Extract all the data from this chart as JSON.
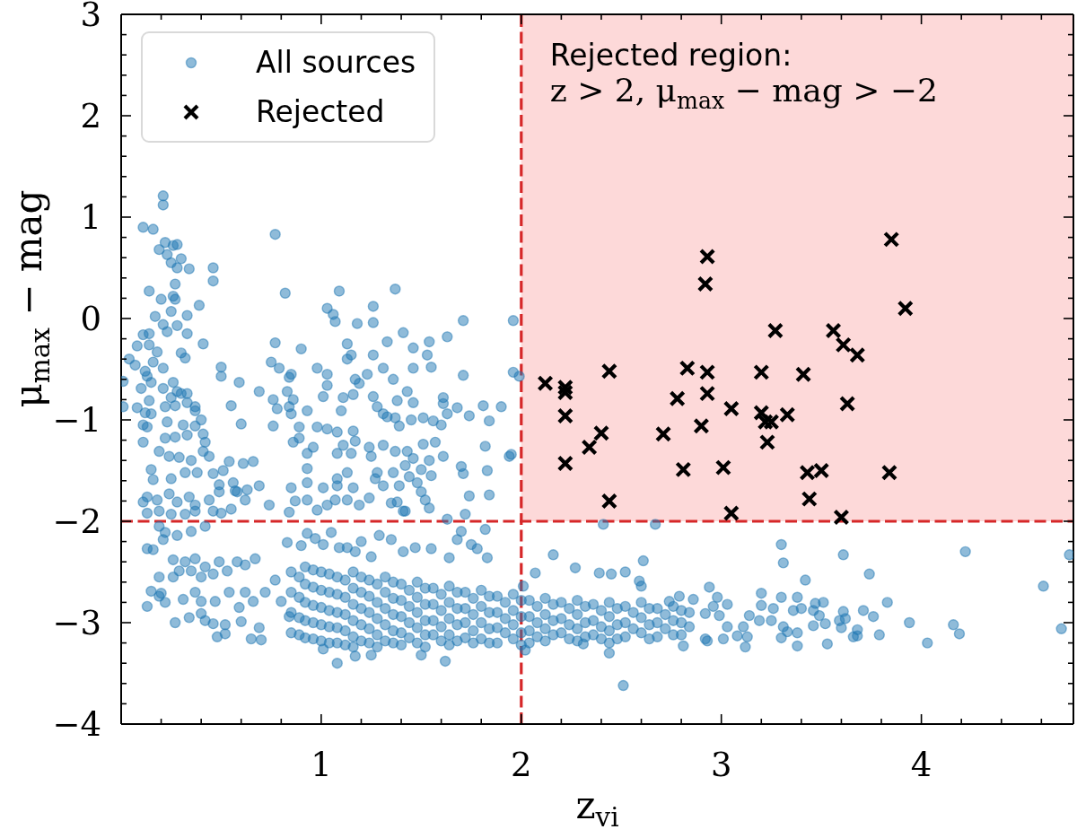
{
  "chart_data": {
    "type": "scatter",
    "xlabel": "z$_{vi}$",
    "ylabel": "μ$_{max}$ − mag",
    "xlim": [
      0,
      4.76
    ],
    "ylim": [
      -4,
      3
    ],
    "xticks": [
      {
        "value": 0.2,
        "label": null
      },
      {
        "value": 0.4,
        "label": null
      },
      {
        "value": 0.6,
        "label": null
      },
      {
        "value": 0.8,
        "label": null
      },
      1,
      {
        "value": 1.2,
        "label": null
      },
      {
        "value": 1.4,
        "label": null
      },
      {
        "value": 1.6,
        "label": null
      },
      {
        "value": 1.8,
        "label": null
      },
      2,
      {
        "value": 2.2,
        "label": null
      },
      {
        "value": 2.4,
        "label": null
      },
      {
        "value": 2.6,
        "label": null
      },
      {
        "value": 2.8,
        "label": null
      },
      3,
      {
        "value": 3.2,
        "label": null
      },
      {
        "value": 3.4,
        "label": null
      },
      {
        "value": 3.6,
        "label": null
      },
      {
        "value": 3.8,
        "label": null
      },
      4,
      {
        "value": 4.2,
        "label": null
      },
      {
        "value": 4.4,
        "label": null
      },
      {
        "value": 4.6,
        "label": null
      }
    ],
    "yticks": [
      {
        "value": -4,
        "label": "−4"
      },
      {
        "value": -3.8,
        "label": null
      },
      {
        "value": -3.6,
        "label": null
      },
      {
        "value": -3.4,
        "label": null
      },
      {
        "value": -3.2,
        "label": null
      },
      {
        "value": -3,
        "label": "−3"
      },
      {
        "value": -2.8,
        "label": null
      },
      {
        "value": -2.6,
        "label": null
      },
      {
        "value": -2.4,
        "label": null
      },
      {
        "value": -2.2,
        "label": null
      },
      {
        "value": -2,
        "label": "−2"
      },
      {
        "value": -1.8,
        "label": null
      },
      {
        "value": -1.6,
        "label": null
      },
      {
        "value": -1.4,
        "label": null
      },
      {
        "value": -1.2,
        "label": null
      },
      {
        "value": -1,
        "label": "−1"
      },
      {
        "value": -0.8,
        "label": null
      },
      {
        "value": -0.6,
        "label": null
      },
      {
        "value": -0.4,
        "label": null
      },
      {
        "value": -0.2,
        "label": null
      },
      0,
      {
        "value": 0.2,
        "label": null
      },
      {
        "value": 0.4,
        "label": null
      },
      {
        "value": 0.6,
        "label": null
      },
      {
        "value": 0.8,
        "label": null
      },
      1,
      {
        "value": 1.2,
        "label": null
      },
      {
        "value": 1.4,
        "label": null
      },
      {
        "value": 1.6,
        "label": null
      },
      {
        "value": 1.8,
        "label": null
      },
      2,
      {
        "value": 2.2,
        "label": null
      },
      {
        "value": 2.4,
        "label": null
      },
      {
        "value": 2.6,
        "label": null
      },
      {
        "value": 2.8,
        "label": null
      },
      3
    ],
    "legend": "top left",
    "ref_lines": [
      {
        "axis": "x",
        "value": 2,
        "color": "#d62728",
        "line_style": "dashed"
      },
      {
        "axis": "y",
        "value": -2,
        "color": "#d62728",
        "line_style": "dashed"
      }
    ],
    "bands": [
      {
        "axis": "x",
        "from": 2,
        "to": 4.76,
        "color": "#fdd9d9"
      }
    ],
    "annotations": [
      "Rejected region:",
      "z > 2, μ$_{max}$ − mag > −2"
    ],
    "series": [
      {
        "name": "All sources",
        "color": "#1f77b4",
        "marker": "circle",
        "x": [
          0.21,
          0.21,
          0.11,
          0.16,
          0.77,
          0.22,
          0.26,
          0.28,
          0.19,
          0.23,
          0.3,
          0.25,
          0.28,
          0.34,
          0.46,
          0.46,
          0.27,
          0.14,
          0.82,
          1.09,
          1.37,
          0.2,
          0.26,
          0.27,
          0.39,
          0.25,
          1.03,
          1.26,
          1.06,
          1.07,
          1.18,
          1.26,
          1.71,
          1.96,
          0.17,
          0.21,
          0.33,
          0.28,
          0.33,
          0.23,
          0.11,
          0.14,
          0.08,
          0.14,
          0.41,
          1.41,
          1.33,
          1.46,
          1.54,
          1.63,
          0.77,
          0.9,
          1.13,
          1.15,
          1.13,
          1.26,
          1.53,
          1.55,
          0.04,
          0.07,
          0.18,
          0.16,
          0.21,
          0.12,
          0.13,
          0.3,
          0.32,
          0.5,
          0.5,
          0.59,
          0.75,
          0.79,
          0.85,
          0.84,
          0.98,
          1.03,
          1.03,
          1.01,
          1.17,
          1.19,
          1.23,
          1.31,
          1.36,
          1.43,
          1.46,
          1.71,
          1.96,
          1.99,
          1.95,
          0.69,
          0.55,
          0.6,
          0.76,
          0.78,
          0.83,
          0.86,
          0.84,
          0.85,
          0.93,
          1.11,
          1.16,
          1.1,
          1.26,
          1.28,
          1.31,
          1.33,
          1.37,
          1.39,
          1.45,
          1.51,
          1.56,
          1.6,
          1.38,
          1.46,
          1.61,
          1.61,
          1.63,
          1.68,
          1.74,
          1.81,
          1.84,
          1.9,
          1.82,
          1.94,
          1.7,
          1.71,
          1.83,
          1.74,
          1.84,
          1.51,
          1.57,
          1.61,
          1.54,
          1.5,
          1.55,
          1.37,
          1.43,
          1.46,
          1.42,
          1.36,
          1.44,
          1.48,
          1.5,
          1.52,
          1.54,
          1.24,
          1.25,
          1.31,
          1.28,
          1.27,
          1.31,
          1.24,
          1.35,
          1.39,
          1.38,
          1.42,
          1.08,
          1.03,
          1.16,
          1.11,
          1.17,
          1.08,
          1.15,
          0.93,
          0.96,
          0.93,
          1.13,
          1.08,
          1.01,
          1.08,
          1.16,
          1.07,
          1.13,
          1.03,
          1.19,
          0.98,
          0.93,
          0.87,
          0.89,
          0.98,
          0.86,
          0.89,
          0.85,
          0.93,
          0.76,
          0.54,
          0.61,
          0.66,
          0.51,
          0.56,
          0.58,
          0.63,
          0.69,
          0.62,
          0.55,
          0.74,
          0.84,
          0.01,
          0.01,
          0.08,
          0.1,
          0.15,
          0.14,
          0.12,
          0.15,
          0.11,
          0.13,
          0.11,
          0.21,
          0.26,
          0.28,
          0.25,
          0.3,
          0.33,
          0.22,
          0.27,
          0.33,
          0.37,
          0.37,
          0.23,
          0.31,
          0.37,
          0.4,
          0.22,
          0.27,
          0.33,
          0.41,
          0.42,
          0.19,
          0.24,
          0.29,
          0.35,
          0.41,
          0.44,
          0.15,
          0.16,
          0.25,
          0.32,
          0.38,
          0.46,
          0.13,
          0.18,
          0.24,
          0.28,
          0.34,
          0.37,
          0.44,
          0.49,
          0.49,
          0.57,
          0.11,
          0.13,
          0.19,
          0.25,
          0.32,
          0.37,
          0.46,
          0.5,
          0.19,
          0.22,
          0.21,
          0.28,
          0.35,
          0.42,
          0.13,
          0.16,
          0.19,
          0.15,
          0.2,
          0.19,
          0.22,
          0.13,
          0.27,
          0.34,
          0.31,
          0.26,
          0.29,
          0.26,
          0.32,
          0.37,
          0.35,
          0.4,
          0.42,
          0.46,
          0.49,
          0.53,
          0.58,
          0.62,
          0.67,
          0.37,
          0.4,
          0.42,
          0.46,
          0.4,
          0.47,
          0.48,
          0.52,
          0.52,
          0.65,
          0.7,
          0.69,
          0.6,
          0.59,
          0.54,
          0.62,
          0.66,
          0.72,
          0.77,
          0.8,
          0.84,
          0.83,
          0.9,
          0.93,
          0.97,
          1.01,
          1.05,
          1.09,
          1.13,
          1.17,
          1.2,
          1.25,
          1.29,
          1.35,
          1.41,
          1.47,
          1.55,
          1.64,
          1.68,
          1.7,
          1.75,
          1.78,
          1.83,
          1.82,
          1.72,
          1.63,
          1.41,
          2.01,
          1.08,
          1.17,
          1.25,
          1.62,
          1.01,
          1.5,
          2.41,
          2.67,
          2.16,
          2.07,
          2.27,
          2.39,
          2.45,
          2.52,
          2.61,
          2.59,
          2.6,
          2.94,
          2.98,
          3.03,
          2.96,
          2.99,
          3.03,
          3.01,
          2.93,
          3.08,
          3.12,
          3.11,
          3.14,
          3.2,
          3.2,
          3.26,
          3.25,
          3.19,
          3.3,
          3.31,
          3.33,
          3.3,
          3.38,
          3.38,
          3.36,
          3.4,
          3.38,
          3.46,
          3.47,
          3.51,
          3.46,
          3.49,
          3.52,
          3.53,
          3.3,
          3.31,
          3.42,
          3.61,
          3.74,
          3.83,
          3.61,
          3.62,
          3.59,
          3.6,
          3.68,
          3.68,
          3.66,
          3.71,
          3.76,
          3.79,
          3.94,
          4.03,
          4.16,
          4.19,
          4.22,
          4.61,
          4.7,
          4.74,
          2.51,
          3.13,
          2.81,
          2.31,
          2.44,
          2.02,
          2.74,
          2.79,
          2.86,
          2.92,
          2.92,
          0.85,
          0.85,
          0.85,
          0.85,
          0.92,
          0.92,
          0.92,
          0.92,
          0.92,
          1.0,
          1.0,
          1.0,
          1.0,
          1.0,
          1.08,
          1.08,
          1.08,
          1.08,
          1.08,
          1.16,
          1.16,
          1.16,
          1.16,
          1.16,
          1.16,
          1.24,
          1.24,
          1.24,
          1.24,
          1.24,
          1.32,
          1.32,
          1.32,
          1.32,
          1.32,
          1.4,
          1.4,
          1.4,
          1.4,
          1.4,
          1.48,
          1.48,
          1.48,
          1.48,
          1.48,
          1.56,
          1.56,
          1.56,
          1.56,
          1.64,
          1.64,
          1.64,
          1.64,
          1.64,
          1.72,
          1.72,
          1.72,
          1.72,
          1.8,
          1.8,
          1.8,
          1.8,
          1.88,
          1.88,
          1.88,
          1.88,
          1.96,
          1.96,
          1.96,
          1.96,
          2.04,
          2.04,
          2.04,
          2.04,
          2.12,
          2.12,
          2.12,
          2.12,
          2.2,
          2.2,
          2.2,
          2.28,
          2.28,
          2.28,
          2.28,
          2.36,
          2.36,
          2.36,
          2.44,
          2.44,
          2.44,
          2.44,
          2.52,
          2.52,
          2.52,
          2.6,
          2.6,
          2.6,
          2.68,
          2.68,
          2.68,
          2.76,
          2.76,
          2.76,
          2.84,
          2.84,
          0.89,
          0.89,
          0.89,
          0.89,
          0.96,
          0.96,
          0.96,
          0.96,
          0.96,
          1.04,
          1.04,
          1.04,
          1.04,
          1.04,
          1.12,
          1.12,
          1.12,
          1.12,
          1.12,
          1.2,
          1.2,
          1.2,
          1.2,
          1.2,
          1.28,
          1.28,
          1.28,
          1.28,
          1.28,
          1.36,
          1.36,
          1.36,
          1.36,
          1.36,
          1.44,
          1.44,
          1.44,
          1.44,
          1.52,
          1.52,
          1.52,
          1.52,
          1.52,
          1.6,
          1.6,
          1.6,
          1.6,
          1.68,
          1.68,
          1.68,
          1.68,
          1.76,
          1.76,
          1.76,
          1.76,
          1.84,
          1.84,
          1.84,
          1.84,
          1.92,
          1.92,
          1.92,
          2.0,
          2.0,
          2.0,
          2.0,
          2.08,
          2.08,
          2.08,
          2.16,
          2.16,
          2.16,
          2.24,
          2.24,
          2.24,
          2.32,
          2.32,
          2.32,
          2.4,
          2.4,
          2.4,
          2.48,
          2.48,
          2.48,
          2.56,
          2.56,
          2.64,
          2.64,
          2.64,
          2.72,
          2.72,
          2.8,
          2.8,
          2.8
        ],
        "values": [
          1.21,
          1.12,
          0.9,
          0.88,
          0.83,
          0.75,
          0.72,
          0.73,
          0.68,
          0.63,
          0.59,
          0.55,
          0.5,
          0.49,
          0.5,
          0.37,
          0.34,
          0.27,
          0.25,
          0.27,
          0.29,
          0.19,
          0.22,
          0.19,
          0.13,
          0.07,
          0.1,
          0.12,
          0.04,
          -0.03,
          -0.05,
          -0.04,
          -0.02,
          -0.02,
          0.02,
          -0.06,
          0.03,
          -0.07,
          -0.15,
          -0.13,
          -0.16,
          -0.15,
          -0.27,
          -0.26,
          -0.25,
          -0.14,
          -0.23,
          -0.29,
          -0.23,
          -0.18,
          -0.24,
          -0.3,
          -0.25,
          -0.36,
          -0.4,
          -0.36,
          -0.36,
          -0.48,
          -0.4,
          -0.46,
          -0.33,
          -0.43,
          -0.49,
          -0.52,
          -0.57,
          -0.34,
          -0.39,
          -0.48,
          -0.57,
          -0.63,
          -0.43,
          -0.49,
          -0.55,
          -0.58,
          -0.49,
          -0.55,
          -0.66,
          -0.77,
          -0.6,
          -0.64,
          -0.55,
          -0.49,
          -0.6,
          -0.72,
          -0.49,
          -0.56,
          -0.53,
          -0.57,
          -1.34,
          -0.72,
          -0.86,
          -1.04,
          -0.8,
          -0.89,
          -0.72,
          -0.8,
          -0.87,
          -0.94,
          -0.91,
          -0.78,
          -0.75,
          -0.91,
          -0.77,
          -0.87,
          -0.94,
          -0.97,
          -0.98,
          -1.06,
          -1.0,
          -0.98,
          -1.01,
          -1.05,
          -0.81,
          -0.83,
          -0.78,
          -0.84,
          -0.94,
          -0.88,
          -0.96,
          -0.86,
          -1.01,
          -0.87,
          -1.26,
          -1.36,
          -1.46,
          -1.53,
          -1.5,
          -1.75,
          -1.74,
          -1.24,
          -1.22,
          -1.36,
          -1.4,
          -1.49,
          -1.55,
          -1.31,
          -1.31,
          -1.38,
          -1.45,
          -1.52,
          -1.56,
          -1.62,
          -1.71,
          -1.79,
          -1.87,
          -1.27,
          -1.36,
          -1.25,
          -1.52,
          -1.58,
          -1.65,
          -1.77,
          -1.82,
          -1.65,
          -1.81,
          -1.9,
          -1.12,
          -1.09,
          -1.11,
          -1.25,
          -1.21,
          -1.33,
          -1.33,
          -1.33,
          -1.27,
          -1.48,
          -1.52,
          -1.58,
          -1.67,
          -1.65,
          -1.67,
          -1.79,
          -1.79,
          -1.84,
          -1.84,
          -1.89,
          -1.62,
          -1.8,
          -1.07,
          -1.07,
          -1.22,
          -1.18,
          -1.67,
          -1.79,
          -1.06,
          -1.41,
          -1.43,
          -1.41,
          -1.5,
          -1.62,
          -1.71,
          -1.69,
          -1.65,
          -1.79,
          -1.88,
          -1.84,
          -1.91,
          -0.62,
          -0.87,
          -0.88,
          -0.69,
          -0.63,
          -0.81,
          -0.93,
          -0.94,
          -1.05,
          -1.07,
          -1.22,
          -0.69,
          -0.63,
          -0.72,
          -0.78,
          -0.74,
          -0.74,
          -0.87,
          -0.86,
          -0.83,
          -0.87,
          -0.91,
          -1.02,
          -1.05,
          -1.06,
          -1.0,
          -1.18,
          -1.17,
          -1.15,
          -1.14,
          -1.22,
          -1.31,
          -1.36,
          -1.37,
          -1.4,
          -1.31,
          -1.36,
          -1.49,
          -1.59,
          -1.58,
          -1.52,
          -1.52,
          -1.53,
          -1.76,
          -1.79,
          -1.73,
          -1.81,
          -1.76,
          -1.84,
          -1.79,
          -1.64,
          -1.71,
          -1.7,
          -1.81,
          -1.92,
          -1.9,
          -1.93,
          -1.93,
          -1.9,
          -1.9,
          -1.92,
          -2.05,
          -2.11,
          -2.18,
          -2.14,
          -2.1,
          -2.05,
          -2.27,
          -2.28,
          -2.55,
          -2.69,
          -2.71,
          -2.74,
          -2.8,
          -2.84,
          -3.0,
          -2.95,
          -2.77,
          -2.38,
          -2.49,
          -2.55,
          -2.4,
          -2.37,
          -2.49,
          -2.55,
          -2.45,
          -2.52,
          -2.4,
          -2.49,
          -2.4,
          -2.43,
          -2.37,
          -2.7,
          -2.91,
          -2.98,
          -3.01,
          -2.79,
          -2.79,
          -3.14,
          -3.11,
          -3.02,
          -3.16,
          -3.17,
          -3.05,
          -2.99,
          -2.85,
          -2.7,
          -2.7,
          -2.79,
          -2.7,
          -2.58,
          -2.79,
          -2.94,
          -2.21,
          -2.24,
          -2.12,
          -2.17,
          -2.23,
          -2.11,
          -2.26,
          -2.26,
          -2.3,
          -2.2,
          -2.35,
          -2.14,
          -2.18,
          -2.3,
          -2.26,
          -2.27,
          -2.36,
          -2.18,
          -2.1,
          -2.23,
          -2.27,
          -2.36,
          -2.08,
          -1.93,
          -1.98,
          -1.9,
          -2.64,
          -3.4,
          -3.33,
          -3.32,
          -3.38,
          -3.26,
          -3.32,
          -2.03,
          -2.03,
          -2.33,
          -2.51,
          -2.46,
          -2.51,
          -2.52,
          -2.5,
          -2.39,
          -2.59,
          -2.64,
          -2.65,
          -2.75,
          -2.82,
          -2.84,
          -2.93,
          -3.04,
          -3.16,
          -3.18,
          -3.13,
          -3.24,
          -3.04,
          -2.93,
          -2.71,
          -2.83,
          -2.86,
          -2.98,
          -2.98,
          -2.75,
          -3.04,
          -3.09,
          -3.15,
          -3.23,
          -3.1,
          -2.88,
          -2.86,
          -2.75,
          -2.88,
          -2.81,
          -2.8,
          -3.03,
          -2.93,
          -3.01,
          -3.21,
          -2.23,
          -2.41,
          -2.58,
          -2.33,
          -2.52,
          -2.8,
          -2.89,
          -2.96,
          -2.98,
          -3.05,
          -3.07,
          -3.13,
          -3.14,
          -2.88,
          -2.94,
          -3.12,
          -3.0,
          -3.2,
          -3.02,
          -3.11,
          -2.3,
          -2.64,
          -3.06,
          -2.33,
          -3.62,
          -3.14,
          -3.23,
          -3.21,
          -3.3,
          -3.27,
          -2.79,
          -2.74,
          -2.77,
          -2.91,
          -3.16,
          -2.5,
          -2.7,
          -2.9,
          -3.1,
          -2.45,
          -2.62,
          -2.8,
          -2.98,
          -3.15,
          -2.5,
          -2.68,
          -2.85,
          -3.02,
          -3.18,
          -2.55,
          -2.72,
          -2.9,
          -3.05,
          -3.2,
          -2.5,
          -2.66,
          -2.82,
          -2.98,
          -3.14,
          -3.24,
          -2.58,
          -2.74,
          -2.9,
          -3.06,
          -3.2,
          -2.55,
          -2.7,
          -2.86,
          -3.02,
          -3.18,
          -2.62,
          -2.78,
          -2.94,
          -3.1,
          -3.22,
          -2.6,
          -2.75,
          -2.9,
          -3.05,
          -3.2,
          -2.66,
          -2.82,
          -2.98,
          -3.12,
          -2.64,
          -2.8,
          -2.96,
          -3.12,
          -3.22,
          -2.7,
          -2.86,
          -3.0,
          -3.15,
          -2.68,
          -2.84,
          -3.0,
          -3.16,
          -2.74,
          -2.9,
          -3.05,
          -3.2,
          -2.72,
          -2.88,
          -3.02,
          -3.16,
          -2.78,
          -2.94,
          -3.08,
          -3.2,
          -2.76,
          -2.92,
          -3.06,
          -3.18,
          -2.8,
          -2.96,
          -3.1,
          -2.78,
          -2.92,
          -3.06,
          -3.18,
          -2.82,
          -2.98,
          -3.12,
          -2.8,
          -2.94,
          -3.08,
          -3.2,
          -2.84,
          -3.0,
          -3.14,
          -2.8,
          -2.95,
          -3.1,
          -2.86,
          -3.0,
          -3.14,
          -2.84,
          -2.98,
          -3.12,
          -2.9,
          -3.04,
          -2.55,
          -2.75,
          -2.95,
          -3.12,
          -2.48,
          -2.65,
          -2.83,
          -3.0,
          -3.16,
          -2.52,
          -2.7,
          -2.88,
          -3.04,
          -3.2,
          -2.58,
          -2.75,
          -2.92,
          -3.08,
          -3.22,
          -2.55,
          -2.7,
          -2.86,
          -3.02,
          -3.18,
          -2.62,
          -2.8,
          -2.96,
          -3.12,
          -3.24,
          -2.6,
          -2.76,
          -2.92,
          -3.08,
          -3.2,
          -2.68,
          -2.84,
          -3.0,
          -3.15,
          -2.66,
          -2.82,
          -2.98,
          -3.12,
          -3.24,
          -2.72,
          -2.88,
          -3.04,
          -3.18,
          -2.7,
          -2.86,
          -3.02,
          -3.18,
          -2.76,
          -2.92,
          -3.08,
          -3.2,
          -2.74,
          -2.9,
          -3.06,
          -3.2,
          -2.8,
          -2.96,
          -3.1,
          -2.78,
          -2.94,
          -3.1,
          -3.22,
          -2.84,
          -3.0,
          -3.14,
          -2.82,
          -2.98,
          -3.12,
          -2.86,
          -3.02,
          -3.16,
          -2.84,
          -3.0,
          -3.14,
          -2.88,
          -3.04,
          -3.16,
          -2.86,
          -3.02,
          -3.16,
          -2.9,
          -3.06,
          -2.86,
          -3.02,
          -3.16,
          -2.92,
          -3.06,
          -2.88,
          -3.0,
          -3.12
        ]
      },
      {
        "name": "Rejected",
        "color": "#000000",
        "marker": "cross",
        "x": [
          2.12,
          2.22,
          2.22,
          2.22,
          2.22,
          2.44,
          2.34,
          2.4,
          2.44,
          2.71,
          2.78,
          2.83,
          2.81,
          2.93,
          2.92,
          2.93,
          2.93,
          2.9,
          3.05,
          3.01,
          3.05,
          3.27,
          3.2,
          3.2,
          3.22,
          3.25,
          3.23,
          3.33,
          3.41,
          3.43,
          3.5,
          3.44,
          3.56,
          3.61,
          3.68,
          3.63,
          3.6,
          3.85,
          3.92,
          3.84
        ],
        "values": [
          -0.64,
          -0.68,
          -0.73,
          -0.96,
          -1.43,
          -0.52,
          -1.27,
          -1.13,
          -1.8,
          -1.14,
          -0.79,
          -0.49,
          -1.49,
          0.61,
          0.34,
          -0.53,
          -0.74,
          -1.06,
          -0.89,
          -1.47,
          -1.92,
          -0.12,
          -0.53,
          -0.93,
          -1.02,
          -1.02,
          -1.22,
          -0.95,
          -0.55,
          -1.52,
          -1.5,
          -1.78,
          -0.12,
          -0.26,
          -0.36,
          -0.84,
          -1.96,
          0.78,
          0.1,
          -1.52
        ]
      }
    ]
  }
}
